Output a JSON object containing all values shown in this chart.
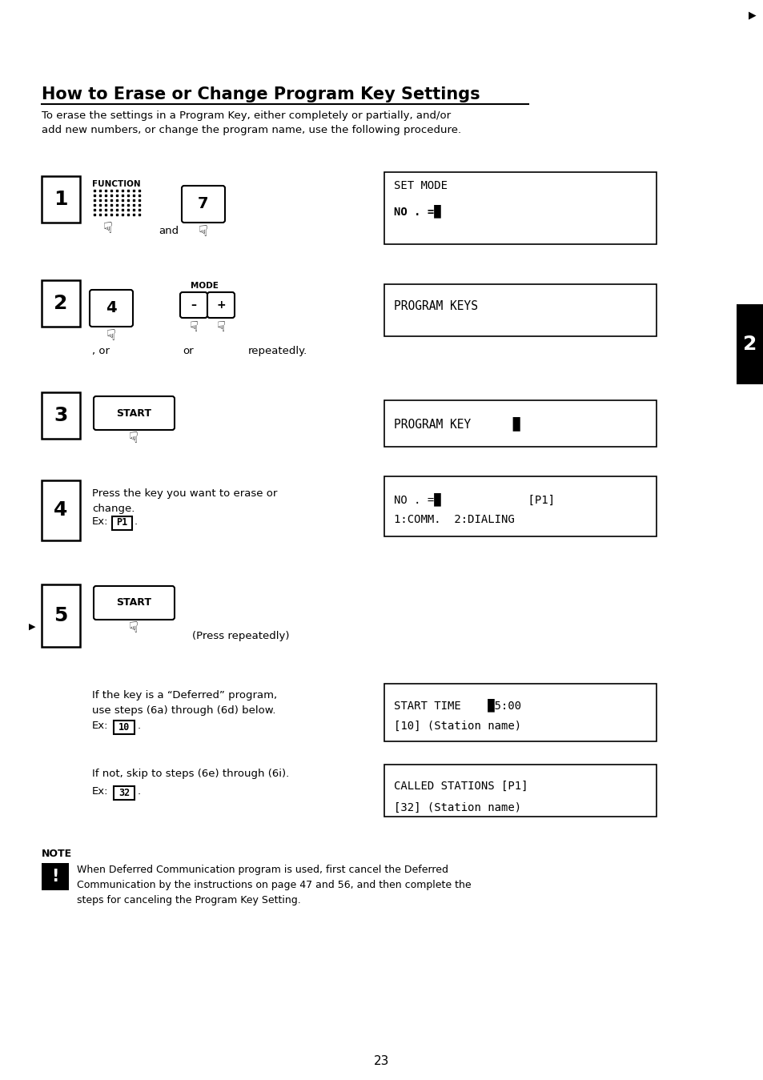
{
  "title": "How to Erase or Change Program Key Settings",
  "subtitle": "To erase the settings in a Program Key, either completely or partially, and/or\nadd new numbers, or change the program name, use the following procedure.",
  "bg_color": "#ffffff",
  "page_num": "23",
  "tab_label": "2",
  "note_text": "When Deferred Communication program is used, first cancel the Deferred\nCommunication by the instructions on page 47 and 56, and then complete the\nsteps for canceling the Program Key Setting."
}
